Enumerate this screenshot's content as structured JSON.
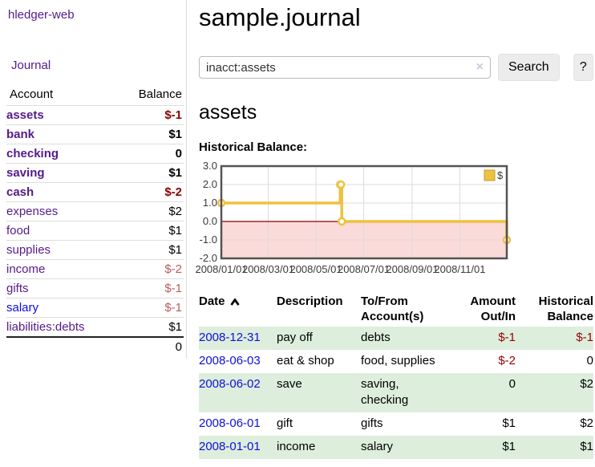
{
  "colors": {
    "accent_purple": "#551a8b",
    "link_blue": "#0f0fd9",
    "negative_dark": "#8b0000",
    "negative_light": "#b85c5c",
    "register_negative": "#990000",
    "row_green": "#ddeedd",
    "chart_line": "#edc240",
    "chart_negative_fill": "#fbdada",
    "chart_zero_line": "#8b0000"
  },
  "sidebar": {
    "brand": "hledger-web",
    "nav": {
      "journal": "Journal"
    },
    "accounts_table": {
      "headers": {
        "account": "Account",
        "balance": "Balance"
      },
      "rows": [
        {
          "name": "assets",
          "depth": 1,
          "bold": true,
          "link": "visited",
          "balance": "$-1",
          "bal_style": "neg-strong"
        },
        {
          "name": "bank",
          "depth": 2,
          "bold": true,
          "link": "visited",
          "balance": "$1",
          "bal_style": "pos-strong"
        },
        {
          "name": "checking",
          "depth": 3,
          "bold": true,
          "link": "visited",
          "balance": "0",
          "bal_style": "pos-strong"
        },
        {
          "name": "saving",
          "depth": 3,
          "bold": true,
          "link": "visited",
          "balance": "$1",
          "bal_style": "pos-strong"
        },
        {
          "name": "cash",
          "depth": 2,
          "bold": true,
          "link": "visited",
          "balance": "$-2",
          "bal_style": "neg-strong"
        },
        {
          "name": "expenses",
          "depth": 1,
          "bold": false,
          "link": "visited",
          "balance": "$2",
          "bal_style": "pos"
        },
        {
          "name": "food",
          "depth": 2,
          "bold": false,
          "link": "visited",
          "balance": "$1",
          "bal_style": "pos"
        },
        {
          "name": "supplies",
          "depth": 2,
          "bold": false,
          "link": "visited",
          "balance": "$1",
          "bal_style": "pos"
        },
        {
          "name": "income",
          "depth": 1,
          "bold": false,
          "link": "visited",
          "balance": "$-2",
          "bal_style": "neg"
        },
        {
          "name": "gifts",
          "depth": 2,
          "bold": false,
          "link": "visited",
          "balance": "$-1",
          "bal_style": "neg"
        },
        {
          "name": "salary",
          "depth": 2,
          "bold": false,
          "link": "unvisited",
          "balance": "$-1",
          "bal_style": "neg"
        },
        {
          "name": "liabilities:debts",
          "depth": 1,
          "bold": false,
          "link": "visited",
          "balance": "$1",
          "bal_style": "pos"
        }
      ],
      "total": "0"
    }
  },
  "header": {
    "title": "sample.journal"
  },
  "search": {
    "query": "inacct:assets",
    "clear_icon": "×",
    "search_label": "Search",
    "help_label": "?"
  },
  "account_page": {
    "heading": "assets",
    "chart_label": "Historical Balance:"
  },
  "chart_data": {
    "type": "line",
    "title": "Historical Balance",
    "step": true,
    "series": [
      {
        "name": "$",
        "color": "#edc240",
        "points": [
          [
            "2008/01/01",
            1
          ],
          [
            "2008/06/01",
            2
          ],
          [
            "2008/06/02",
            2
          ],
          [
            "2008/06/03",
            0
          ],
          [
            "2008/12/31",
            -1
          ]
        ]
      }
    ],
    "xrange": [
      "2008/01/01",
      "2008/12/31"
    ],
    "ylim": [
      -2,
      3
    ],
    "yticks": [
      {
        "v": 3,
        "label": "3.0"
      },
      {
        "v": 2,
        "label": "2.0"
      },
      {
        "v": 1,
        "label": "1.0"
      },
      {
        "v": 0,
        "label": "0.0"
      },
      {
        "v": -1,
        "label": "-1.0"
      },
      {
        "v": -2,
        "label": "-2.0"
      }
    ],
    "xticks": [
      {
        "d": "2008/01/01",
        "label": "2008/01/01"
      },
      {
        "d": "2008/03/01",
        "label": "2008/03/01"
      },
      {
        "d": "2008/05/01",
        "label": "2008/05/01"
      },
      {
        "d": "2008/07/01",
        "label": "2008/07/01"
      },
      {
        "d": "2008/09/01",
        "label": "2008/09/01"
      },
      {
        "d": "2008/11/01",
        "label": "2008/11/01"
      }
    ],
    "grid": true,
    "legend": {
      "label": "$",
      "position": "top-right"
    },
    "negative_region_fill": "#fbdada",
    "zero_line_color": "#8b0000",
    "border_color": "#545454",
    "grid_color": "#dcdcdc"
  },
  "transactions": {
    "headers": [
      {
        "label": "Date",
        "sorted": "ascending"
      },
      {
        "label": "Description"
      },
      {
        "label": "To/From\nAccount(s)"
      },
      {
        "label": "Amount\nOut/In"
      },
      {
        "label": "Historical\nBalance"
      }
    ],
    "rows": [
      {
        "date": "2008-12-31",
        "description": "pay off",
        "accounts": "debts",
        "amount": "$-1",
        "amount_neg": true,
        "balance": "$-1",
        "balance_neg": true
      },
      {
        "date": "2008-06-03",
        "description": "eat & shop",
        "accounts": "food, supplies",
        "amount": "$-2",
        "amount_neg": true,
        "balance": "0",
        "balance_neg": false
      },
      {
        "date": "2008-06-02",
        "description": "save",
        "accounts": "saving,\nchecking",
        "amount": "0",
        "amount_neg": false,
        "balance": "$2",
        "balance_neg": false
      },
      {
        "date": "2008-06-01",
        "description": "gift",
        "accounts": "gifts",
        "amount": "$1",
        "amount_neg": false,
        "balance": "$2",
        "balance_neg": false
      },
      {
        "date": "2008-01-01",
        "description": "income",
        "accounts": "salary",
        "amount": "$1",
        "amount_neg": false,
        "balance": "$1",
        "balance_neg": false
      }
    ]
  }
}
